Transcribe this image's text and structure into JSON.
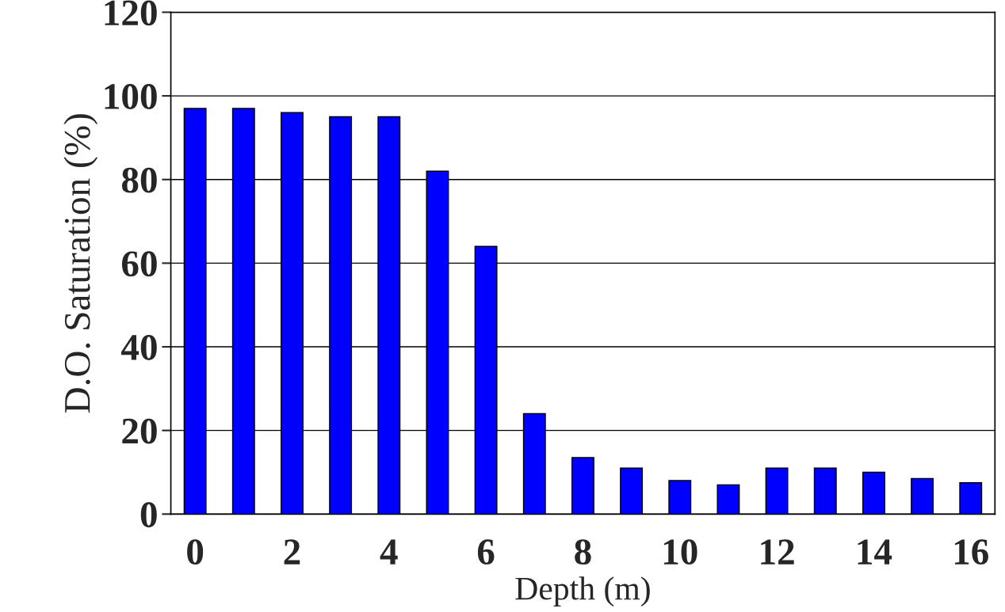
{
  "chart_data": {
    "type": "bar",
    "xlabel": "Depth (m)",
    "ylabel": "D.O. Saturation (%)",
    "categories": [
      "0",
      null,
      "2",
      null,
      "4",
      null,
      "6",
      null,
      "8",
      null,
      "10",
      null,
      "12",
      null,
      "14",
      null,
      "16"
    ],
    "values": [
      97,
      97,
      96,
      95,
      95,
      82,
      64,
      24,
      13.5,
      11,
      8,
      7,
      11,
      11,
      10,
      8.5,
      7.5
    ],
    "color": "#0000ff",
    "ylim": [
      0,
      120
    ],
    "yticks": [
      0,
      20,
      40,
      60,
      80,
      100,
      120
    ],
    "grid": "y",
    "legend": false
  }
}
